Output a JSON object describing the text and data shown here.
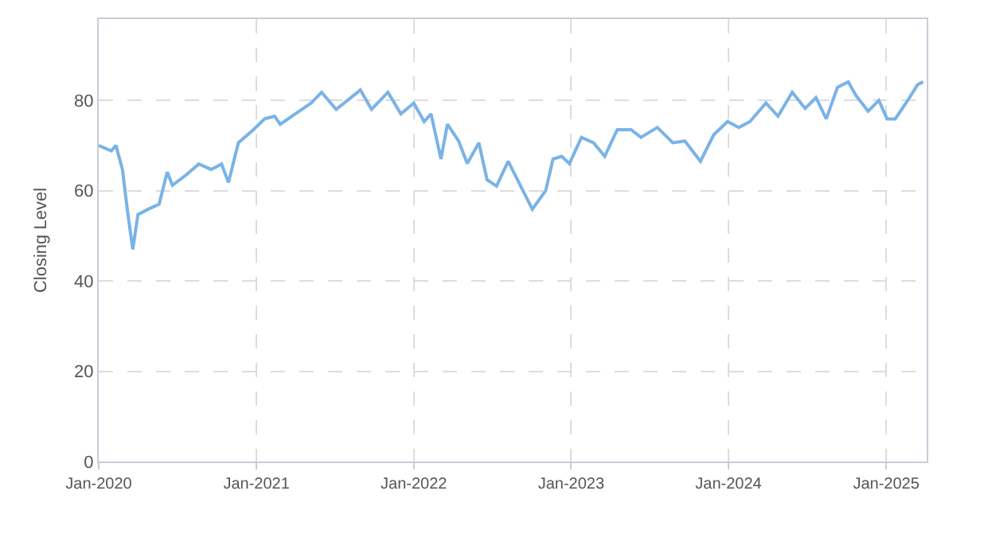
{
  "chart_data": {
    "type": "line",
    "ylabel": "Closing Level",
    "x": [
      "2020-01-01",
      "2020-01-30",
      "2020-02-10",
      "2020-02-25",
      "2020-03-08",
      "2020-03-20",
      "2020-04-01",
      "2020-04-25",
      "2020-05-20",
      "2020-06-08",
      "2020-06-20",
      "2020-07-22",
      "2020-08-20",
      "2020-09-18",
      "2020-10-12",
      "2020-10-28",
      "2020-11-20",
      "2020-12-25",
      "2021-01-20",
      "2021-02-12",
      "2021-02-25",
      "2021-04-01",
      "2021-05-08",
      "2021-06-01",
      "2021-07-05",
      "2021-08-30",
      "2021-09-25",
      "2021-11-02",
      "2021-12-02",
      "2022-01-01",
      "2022-01-25",
      "2022-02-10",
      "2022-03-05",
      "2022-03-20",
      "2022-04-15",
      "2022-05-05",
      "2022-06-01",
      "2022-06-20",
      "2022-07-12",
      "2022-08-08",
      "2022-09-08",
      "2022-10-03",
      "2022-11-03",
      "2022-11-20",
      "2022-12-10",
      "2022-12-28",
      "2023-01-25",
      "2023-02-22",
      "2023-03-20",
      "2023-04-18",
      "2023-05-20",
      "2023-06-12",
      "2023-07-20",
      "2023-08-25",
      "2023-09-22",
      "2023-10-28",
      "2023-11-28",
      "2023-12-30",
      "2024-01-25",
      "2024-02-20",
      "2024-03-28",
      "2024-04-25",
      "2024-05-28",
      "2024-06-27",
      "2024-07-22",
      "2024-08-15",
      "2024-09-10",
      "2024-10-05",
      "2024-10-22",
      "2024-11-20",
      "2024-12-15",
      "2025-01-03",
      "2025-01-22",
      "2025-02-20",
      "2025-03-15",
      "2025-03-28"
    ],
    "series": [
      {
        "color": "#7ab3e6",
        "values": [
          70,
          68.8,
          70,
          64.7,
          55.3,
          47,
          54.7,
          55.9,
          57,
          64.1,
          61.2,
          63.5,
          65.9,
          64.7,
          65.9,
          61.8,
          70.6,
          73.5,
          75.9,
          76.5,
          74.7,
          77,
          79.4,
          81.8,
          78,
          82.3,
          78,
          81.8,
          77,
          79.4,
          75.3,
          77,
          67,
          74.7,
          71,
          66,
          70.6,
          62.4,
          61,
          66.5,
          60.6,
          55.9,
          60,
          67,
          67.6,
          66,
          71.8,
          70.6,
          67.6,
          73.5,
          73.5,
          71.8,
          74,
          70.6,
          71,
          66.5,
          72.4,
          75.3,
          74,
          75.3,
          79.4,
          76.5,
          81.8,
          78.2,
          80.6,
          75.9,
          82.9,
          84.1,
          81.2,
          77.6,
          80,
          75.9,
          75.9,
          80,
          83.5,
          84.1
        ]
      }
    ],
    "xlim": [
      "2020-01-01",
      "2025-04-05"
    ],
    "xticks": [
      {
        "value": "2020-01-01",
        "label": "Jan-2020"
      },
      {
        "value": "2021-01-01",
        "label": "Jan-2021"
      },
      {
        "value": "2022-01-01",
        "label": "Jan-2022"
      },
      {
        "value": "2023-01-01",
        "label": "Jan-2023"
      },
      {
        "value": "2024-01-01",
        "label": "Jan-2024"
      },
      {
        "value": "2025-01-01",
        "label": "Jan-2025"
      }
    ],
    "ylim": [
      0,
      98
    ],
    "yticks": [
      0,
      20,
      40,
      60,
      80
    ],
    "grid": true,
    "line_style": "solid",
    "marker": "none"
  }
}
